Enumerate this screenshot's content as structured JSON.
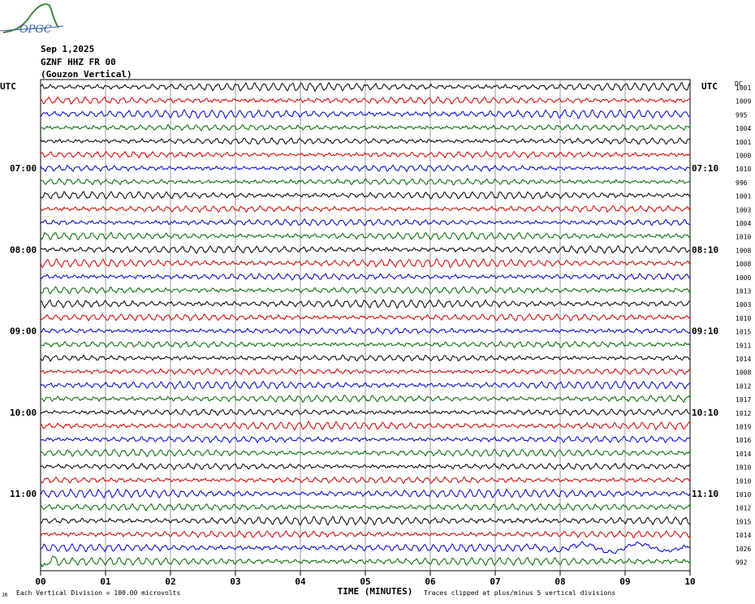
{
  "logo": {
    "text": "OPGC",
    "color": "#3a8a3a",
    "text_color": "#2f5fa8"
  },
  "header": {
    "date": "Sep 1,2025",
    "channel": "GZNF HHZ FR 00",
    "site": "(Gouzon Vertical)"
  },
  "chart_data": {
    "type": "line",
    "title": "",
    "xlabel": "TIME (MINUTES)",
    "x_ticks": [
      "00",
      "01",
      "02",
      "03",
      "04",
      "05",
      "06",
      "07",
      "08",
      "09",
      "10"
    ],
    "xlim": [
      0,
      10
    ],
    "left_axis_label": "UTC",
    "right_axis_label": "UTC",
    "dc_label": "DC",
    "row_minutes": 10,
    "rows_count": 36,
    "trace_colors": [
      "#000000",
      "#cc0000",
      "#0000cc",
      "#006600"
    ],
    "left_time_labels": [
      {
        "row": 6,
        "text": "07:00"
      },
      {
        "row": 12,
        "text": "08:00"
      },
      {
        "row": 18,
        "text": "09:00"
      },
      {
        "row": 24,
        "text": "10:00"
      },
      {
        "row": 30,
        "text": "11:00"
      }
    ],
    "right_time_labels": [
      {
        "row": 6,
        "text": "07:10"
      },
      {
        "row": 12,
        "text": "08:10"
      },
      {
        "row": 18,
        "text": "09:10"
      },
      {
        "row": 24,
        "text": "10:10"
      },
      {
        "row": 30,
        "text": "11:10"
      }
    ],
    "dc_offsets": [
      1001,
      1009,
      995,
      1004,
      1001,
      1000,
      1010,
      996,
      1001,
      1003,
      1004,
      1010,
      1008,
      1008,
      1000,
      1013,
      1003,
      1010,
      1015,
      1011,
      1014,
      1008,
      1012,
      1017,
      1012,
      1019,
      1016,
      1014,
      1010,
      1010,
      1010,
      1012,
      1015,
      1014,
      1026,
      992
    ],
    "scale_note": "Each Vertical Division =  100.00 microvolts",
    "clip_note": "Traces clipped at plus/minus 5 vertical divisions",
    "corner_mark": "JR"
  }
}
